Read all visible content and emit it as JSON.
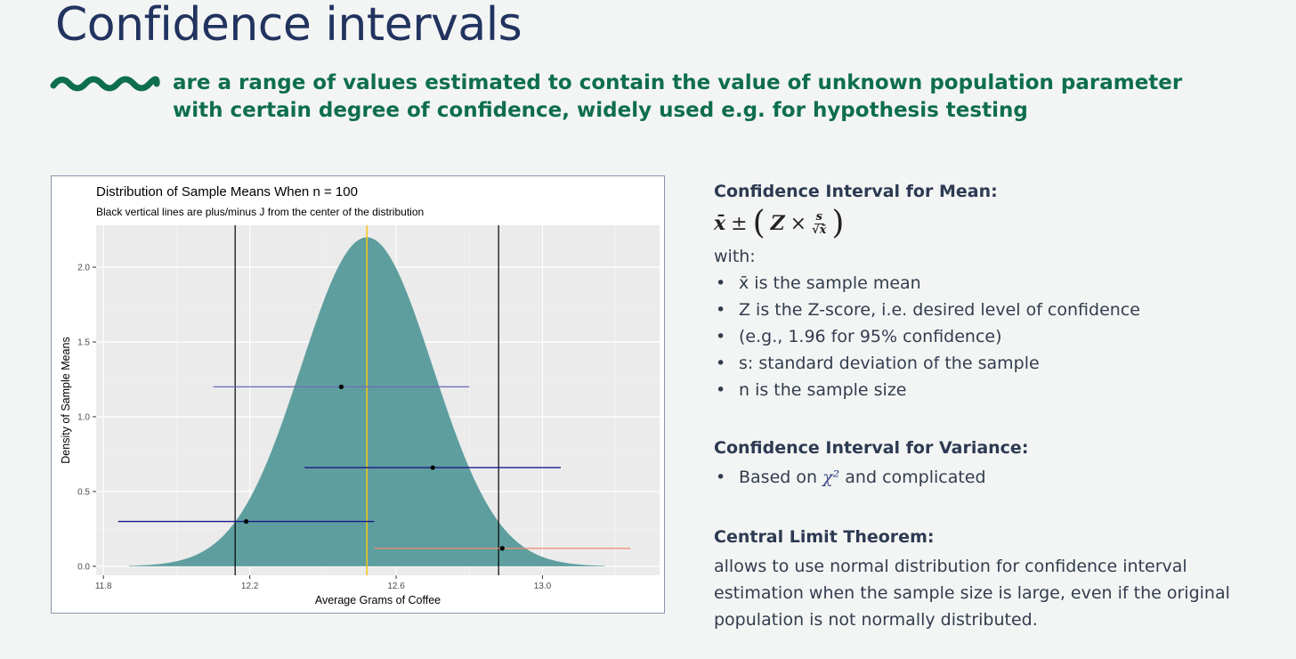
{
  "title": "Confidence intervals",
  "subtitle_line1": "are a range of values estimated to contain the value of unknown population parameter",
  "subtitle_line2": "with certain degree of confidence, widely used e.g. for hypothesis testing",
  "colors": {
    "title": "#22335f",
    "accent": "#0e6e4f",
    "fill": "#5f9e9e",
    "center_line": "#f5c518"
  },
  "chart_data": {
    "type": "area",
    "title": "Distribution of Sample Means When n = 100",
    "subtitle": "Black vertical lines are plus/minus J from the center of the distribution",
    "xlabel": "Average Grams of Coffee",
    "ylabel": "Density of Sample Means",
    "xlim": [
      11.78,
      13.32
    ],
    "ylim": [
      -0.06,
      2.28
    ],
    "x_ticks": [
      11.8,
      12.2,
      12.6,
      13.0
    ],
    "x_tick_labels": [
      "11.8",
      "12.2",
      "12.6",
      "13.0"
    ],
    "y_ticks": [
      0.0,
      0.5,
      1.0,
      1.5,
      2.0
    ],
    "y_tick_labels": [
      "0.0",
      "0.5",
      "1.0",
      "1.5",
      "2.0"
    ],
    "grid": true,
    "distribution": {
      "mean": 12.52,
      "sd": 0.18,
      "peak_density": 2.2,
      "x_range": [
        11.87,
        13.17
      ]
    },
    "center_line": 12.52,
    "bound_lines": [
      12.16,
      12.88
    ],
    "intervals": [
      {
        "point": 12.45,
        "lower": 12.1,
        "upper": 12.8,
        "y": 1.2,
        "color": "#6b6bb8"
      },
      {
        "point": 12.7,
        "lower": 12.35,
        "upper": 13.05,
        "y": 0.66,
        "color": "#1a1a8c"
      },
      {
        "point": 12.19,
        "lower": 11.84,
        "upper": 12.54,
        "y": 0.3,
        "color": "#1a1a8c"
      },
      {
        "point": 12.89,
        "lower": 12.54,
        "upper": 13.24,
        "y": 0.12,
        "color": "#f08a70"
      }
    ]
  },
  "mean_section": {
    "heading": "Confidence Interval for Mean:",
    "formula": {
      "xbar": "x̄",
      "pm": "±",
      "open": "(",
      "z": "Z",
      "times": "×",
      "num": "s",
      "den": "√x̄",
      "close": ")"
    },
    "with": "with:",
    "bullets": [
      "x̄ is the sample mean",
      "Z is the Z-score, i.e. desired level of confidence",
      "(e.g., 1.96 for 95% confidence)",
      "s: standard deviation of the sample",
      "n is the sample size"
    ]
  },
  "variance_section": {
    "heading": "Confidence Interval for Variance:",
    "bullet_pre": "Based on",
    "bullet_symbol": "χ²",
    "bullet_post": "and complicated"
  },
  "clt_section": {
    "heading": "Central Limit Theorem:",
    "line1": "allows to use normal distribution for confidence interval",
    "line2": "estimation when the sample size is large, even if the original",
    "line3": "population is not normally distributed."
  }
}
